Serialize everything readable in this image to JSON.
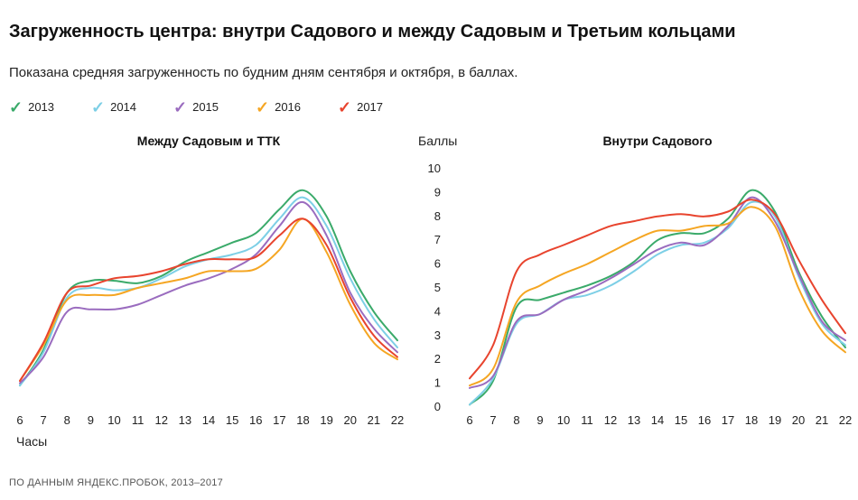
{
  "title": "Загруженность центра: внутри Садового и между Садовым и Третьим кольцами",
  "subtitle": "Показана средняя загруженность по будним дням сентября и октября, в баллах.",
  "source": "ПО ДАННЫМ ЯНДЕКС.ПРОБОК, 2013–2017",
  "legend": [
    {
      "label": "2013",
      "color": "#3aaa6a"
    },
    {
      "label": "2014",
      "color": "#7dcfe6"
    },
    {
      "label": "2015",
      "color": "#9a6cbf"
    },
    {
      "label": "2016",
      "color": "#f5a623"
    },
    {
      "label": "2017",
      "color": "#e8442e"
    }
  ],
  "chart_data": [
    {
      "type": "line",
      "title": "Между Садовым и ТТК",
      "xlabel": "Часы",
      "ylabel": "",
      "x": [
        6,
        7,
        8,
        9,
        10,
        11,
        12,
        13,
        14,
        15,
        16,
        17,
        18,
        19,
        20,
        21,
        22
      ],
      "ylim": [
        0,
        10
      ],
      "y_ticks_shown": false,
      "grid": false,
      "series": [
        {
          "name": "2013",
          "color": "#3aaa6a",
          "values": [
            0.9,
            2.4,
            4.8,
            5.3,
            5.3,
            5.2,
            5.5,
            6.1,
            6.5,
            6.9,
            7.3,
            8.3,
            9.1,
            8.0,
            5.7,
            4.0,
            2.8
          ]
        },
        {
          "name": "2014",
          "color": "#7dcfe6",
          "values": [
            0.9,
            2.3,
            4.6,
            5.0,
            4.9,
            5.0,
            5.4,
            5.9,
            6.2,
            6.4,
            6.8,
            7.9,
            8.8,
            7.6,
            5.4,
            3.7,
            2.5
          ]
        },
        {
          "name": "2015",
          "color": "#9a6cbf",
          "values": [
            1.0,
            2.1,
            4.0,
            4.1,
            4.1,
            4.3,
            4.7,
            5.1,
            5.4,
            5.8,
            6.4,
            7.6,
            8.6,
            7.2,
            4.8,
            3.3,
            2.3
          ]
        },
        {
          "name": "2016",
          "color": "#f5a623",
          "values": [
            1.1,
            2.6,
            4.5,
            4.7,
            4.7,
            5.0,
            5.2,
            5.4,
            5.7,
            5.7,
            5.8,
            6.6,
            7.9,
            6.5,
            4.3,
            2.7,
            2.0
          ]
        },
        {
          "name": "2017",
          "color": "#e8442e",
          "values": [
            1.1,
            2.7,
            4.8,
            5.1,
            5.4,
            5.5,
            5.7,
            6.0,
            6.2,
            6.2,
            6.3,
            7.2,
            7.9,
            6.8,
            4.6,
            3.0,
            2.1
          ]
        }
      ]
    },
    {
      "type": "line",
      "title": "Внутри Садового",
      "xlabel": "",
      "ylabel": "Баллы",
      "x": [
        6,
        7,
        8,
        9,
        10,
        11,
        12,
        13,
        14,
        15,
        16,
        17,
        18,
        19,
        20,
        21,
        22
      ],
      "ylim": [
        0,
        10
      ],
      "y_ticks": [
        0,
        1,
        2,
        3,
        4,
        5,
        6,
        7,
        8,
        9,
        10
      ],
      "grid": false,
      "series": [
        {
          "name": "2013",
          "color": "#3aaa6a",
          "values": [
            0.1,
            1.1,
            4.2,
            4.5,
            4.8,
            5.1,
            5.5,
            6.1,
            7.0,
            7.3,
            7.3,
            7.9,
            9.1,
            8.2,
            5.7,
            3.8,
            2.5
          ]
        },
        {
          "name": "2014",
          "color": "#7dcfe6",
          "values": [
            0.1,
            1.2,
            3.5,
            3.9,
            4.5,
            4.7,
            5.1,
            5.7,
            6.4,
            6.8,
            6.9,
            7.5,
            8.6,
            8.0,
            5.5,
            3.5,
            2.6
          ]
        },
        {
          "name": "2015",
          "color": "#9a6cbf",
          "values": [
            0.8,
            1.3,
            3.6,
            3.9,
            4.5,
            4.9,
            5.4,
            6.0,
            6.6,
            6.9,
            6.8,
            7.6,
            8.8,
            7.8,
            5.6,
            3.6,
            2.8
          ]
        },
        {
          "name": "2016",
          "color": "#f5a623",
          "values": [
            0.9,
            1.6,
            4.4,
            5.1,
            5.6,
            6.0,
            6.5,
            7.0,
            7.4,
            7.4,
            7.6,
            7.7,
            8.4,
            7.6,
            5.0,
            3.2,
            2.3
          ]
        },
        {
          "name": "2017",
          "color": "#e8442e",
          "values": [
            1.2,
            2.6,
            5.7,
            6.4,
            6.8,
            7.2,
            7.6,
            7.8,
            8.0,
            8.1,
            8.0,
            8.2,
            8.7,
            8.1,
            6.2,
            4.5,
            3.1
          ]
        }
      ]
    }
  ]
}
